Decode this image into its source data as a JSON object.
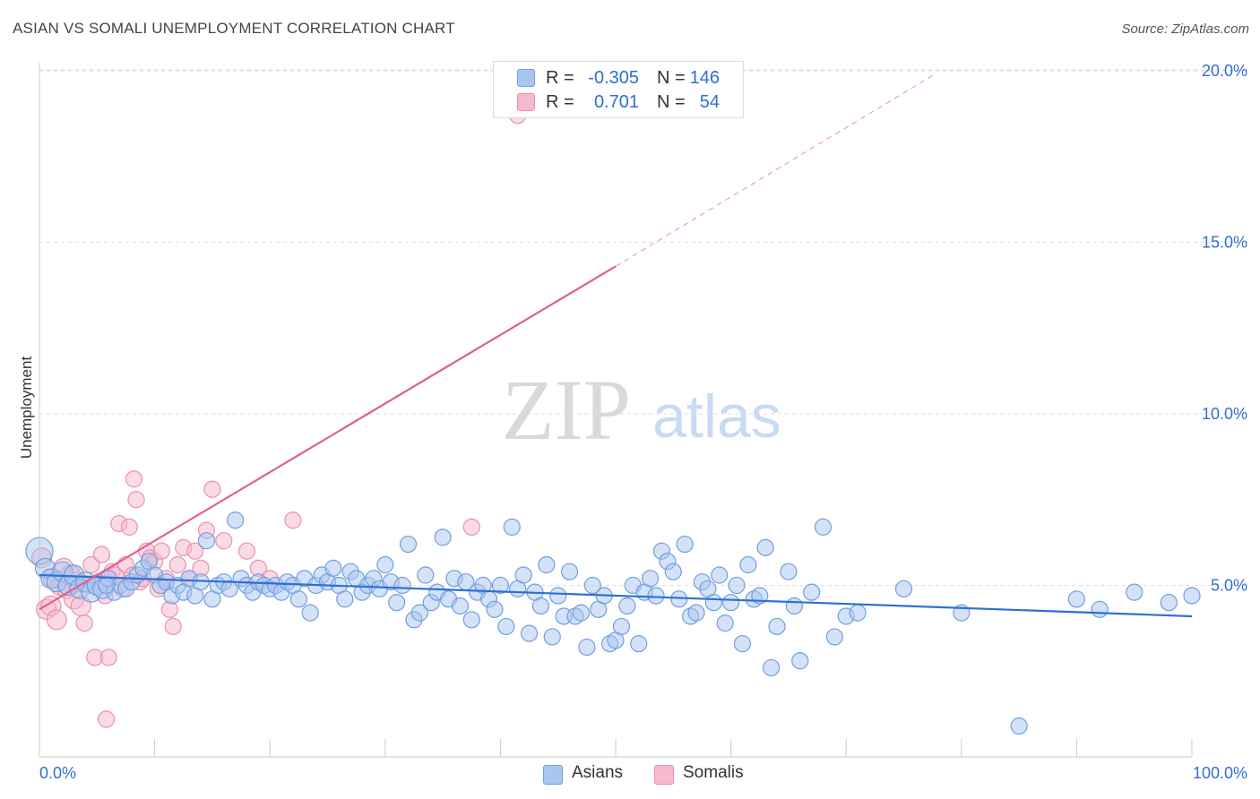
{
  "title": "ASIAN VS SOMALI UNEMPLOYMENT CORRELATION CHART",
  "source": "Source: ZipAtlas.com",
  "watermark": {
    "zip": "ZIP",
    "atlas": "atlas"
  },
  "legend": {
    "rows": [
      {
        "r_label": "R =",
        "r_value": "-0.305",
        "n_label": "N =",
        "n_value": "146"
      },
      {
        "r_label": "R =",
        "r_value": "0.701",
        "n_label": "N =",
        "n_value": "54"
      }
    ]
  },
  "colors": {
    "asians_fill": "#a9c6f0",
    "asians_stroke": "#6f9fe0",
    "asians_line": "#2f6fd6",
    "somalis_fill": "#f6b8cb",
    "somalis_stroke": "#ec8fac",
    "somalis_line": "#e0608e",
    "axis_text": "#2f6fd6",
    "grid": "#dddddd"
  },
  "chart_data": {
    "type": "scatter",
    "title": "ASIAN VS SOMALI UNEMPLOYMENT CORRELATION CHART",
    "xlabel": "",
    "ylabel": "Unemployment",
    "xlim": [
      0,
      100
    ],
    "ylim": [
      0,
      20.5
    ],
    "x_tick_labels": [
      "0.0%",
      "100.0%"
    ],
    "y_ticks": [
      5,
      10,
      15,
      20
    ],
    "y_tick_labels": [
      "5.0%",
      "10.0%",
      "15.0%",
      "20.0%"
    ],
    "grid": true,
    "legend_position": "bottom",
    "series": [
      {
        "name": "Asians",
        "stats": {
          "R": -0.305,
          "N": 146
        },
        "trend": {
          "x": [
            0,
            100
          ],
          "y": [
            5.3,
            4.1
          ],
          "extrapolated": false
        },
        "points": [
          [
            0,
            6.0
          ],
          [
            0.5,
            5.5
          ],
          [
            1,
            5.2
          ],
          [
            1.5,
            5.1
          ],
          [
            2,
            5.4
          ],
          [
            2.5,
            5.0
          ],
          [
            3,
            5.3
          ],
          [
            3.5,
            4.9
          ],
          [
            4,
            5.1
          ],
          [
            4.5,
            4.8
          ],
          [
            5,
            5.0
          ],
          [
            5.5,
            4.9
          ],
          [
            6,
            5.2
          ],
          [
            6.5,
            4.8
          ],
          [
            7,
            5.0
          ],
          [
            7.5,
            4.9
          ],
          [
            8,
            5.1
          ],
          [
            8.5,
            5.3
          ],
          [
            9,
            5.5
          ],
          [
            9.5,
            5.7
          ],
          [
            10,
            5.3
          ],
          [
            10.5,
            5.0
          ],
          [
            11,
            5.1
          ],
          [
            11.5,
            4.7
          ],
          [
            12,
            5.0
          ],
          [
            12.5,
            4.8
          ],
          [
            13,
            5.2
          ],
          [
            13.5,
            4.7
          ],
          [
            14,
            5.1
          ],
          [
            14.5,
            6.3
          ],
          [
            15,
            4.6
          ],
          [
            15.5,
            5.0
          ],
          [
            16,
            5.1
          ],
          [
            16.5,
            4.9
          ],
          [
            17,
            6.9
          ],
          [
            17.5,
            5.2
          ],
          [
            18,
            5.0
          ],
          [
            18.5,
            4.8
          ],
          [
            19,
            5.1
          ],
          [
            19.5,
            5.0
          ],
          [
            20,
            4.9
          ],
          [
            20.5,
            5.0
          ],
          [
            21,
            4.8
          ],
          [
            21.5,
            5.1
          ],
          [
            22,
            5.0
          ],
          [
            22.5,
            4.6
          ],
          [
            23,
            5.2
          ],
          [
            23.5,
            4.2
          ],
          [
            24,
            5.0
          ],
          [
            24.5,
            5.3
          ],
          [
            25,
            5.1
          ],
          [
            25.5,
            5.5
          ],
          [
            26,
            5.0
          ],
          [
            26.5,
            4.6
          ],
          [
            27,
            5.4
          ],
          [
            27.5,
            5.2
          ],
          [
            28,
            4.8
          ],
          [
            28.5,
            5.0
          ],
          [
            29,
            5.2
          ],
          [
            29.5,
            4.9
          ],
          [
            30,
            5.6
          ],
          [
            30.5,
            5.1
          ],
          [
            31,
            4.5
          ],
          [
            31.5,
            5.0
          ],
          [
            32,
            6.2
          ],
          [
            32.5,
            4.0
          ],
          [
            33,
            4.2
          ],
          [
            33.5,
            5.3
          ],
          [
            34,
            4.5
          ],
          [
            34.5,
            4.8
          ],
          [
            35,
            6.4
          ],
          [
            35.5,
            4.6
          ],
          [
            36,
            5.2
          ],
          [
            36.5,
            4.4
          ],
          [
            37,
            5.1
          ],
          [
            37.5,
            4.0
          ],
          [
            38,
            4.8
          ],
          [
            38.5,
            5.0
          ],
          [
            39,
            4.6
          ],
          [
            39.5,
            4.3
          ],
          [
            40,
            5.0
          ],
          [
            40.5,
            3.8
          ],
          [
            41,
            6.7
          ],
          [
            41.5,
            4.9
          ],
          [
            42,
            5.3
          ],
          [
            42.5,
            3.6
          ],
          [
            43,
            4.8
          ],
          [
            43.5,
            4.4
          ],
          [
            44,
            5.6
          ],
          [
            44.5,
            3.5
          ],
          [
            45,
            4.7
          ],
          [
            45.5,
            4.1
          ],
          [
            46,
            5.4
          ],
          [
            46.5,
            4.1
          ],
          [
            47,
            4.2
          ],
          [
            47.5,
            3.2
          ],
          [
            48,
            5.0
          ],
          [
            48.5,
            4.3
          ],
          [
            49,
            4.7
          ],
          [
            49.5,
            3.3
          ],
          [
            50,
            3.4
          ],
          [
            50.5,
            3.8
          ],
          [
            51,
            4.4
          ],
          [
            51.5,
            5.0
          ],
          [
            52,
            3.3
          ],
          [
            52.5,
            4.8
          ],
          [
            53,
            5.2
          ],
          [
            53.5,
            4.7
          ],
          [
            54,
            6.0
          ],
          [
            54.5,
            5.7
          ],
          [
            55,
            5.4
          ],
          [
            55.5,
            4.6
          ],
          [
            56,
            6.2
          ],
          [
            56.5,
            4.1
          ],
          [
            57,
            4.2
          ],
          [
            57.5,
            5.1
          ],
          [
            58,
            4.9
          ],
          [
            58.5,
            4.5
          ],
          [
            59,
            5.3
          ],
          [
            59.5,
            3.9
          ],
          [
            60,
            4.5
          ],
          [
            60.5,
            5.0
          ],
          [
            61,
            3.3
          ],
          [
            61.5,
            5.6
          ],
          [
            62,
            4.6
          ],
          [
            62.5,
            4.7
          ],
          [
            63,
            6.1
          ],
          [
            63.5,
            2.6
          ],
          [
            64,
            3.8
          ],
          [
            65,
            5.4
          ],
          [
            65.5,
            4.4
          ],
          [
            66,
            2.8
          ],
          [
            67,
            4.8
          ],
          [
            68,
            6.7
          ],
          [
            69,
            3.5
          ],
          [
            70,
            4.1
          ],
          [
            71,
            4.2
          ],
          [
            75,
            4.9
          ],
          [
            80,
            4.2
          ],
          [
            85,
            0.9
          ],
          [
            90,
            4.6
          ],
          [
            92,
            4.3
          ],
          [
            95,
            4.8
          ],
          [
            98,
            4.5
          ],
          [
            100,
            4.7
          ],
          [
            5.8,
            5.0
          ]
        ]
      },
      {
        "name": "Somalis",
        "stats": {
          "R": 0.701,
          "N": 54
        },
        "trend": {
          "x": [
            0,
            50
          ],
          "y": [
            4.3,
            14.3
          ],
          "extrapolated_to": [
            77.7,
            19.9
          ]
        },
        "points": [
          [
            0.2,
            5.8
          ],
          [
            0.6,
            4.3
          ],
          [
            1,
            4.4
          ],
          [
            1.2,
            5.2
          ],
          [
            1.5,
            4.0
          ],
          [
            1.8,
            5.0
          ],
          [
            2.1,
            5.5
          ],
          [
            2.4,
            4.9
          ],
          [
            2.7,
            5.3
          ],
          [
            3,
            4.6
          ],
          [
            3.3,
            5.1
          ],
          [
            3.6,
            4.4
          ],
          [
            3.9,
            3.9
          ],
          [
            4.2,
            5.0
          ],
          [
            4.5,
            5.6
          ],
          [
            4.8,
            2.9
          ],
          [
            5.1,
            5.1
          ],
          [
            5.4,
            5.9
          ],
          [
            5.7,
            4.7
          ],
          [
            6,
            2.9
          ],
          [
            6.3,
            5.4
          ],
          [
            6.6,
            5.3
          ],
          [
            6.9,
            6.8
          ],
          [
            7.2,
            4.9
          ],
          [
            7.5,
            5.6
          ],
          [
            7.8,
            6.7
          ],
          [
            8.1,
            5.3
          ],
          [
            8.4,
            7.5
          ],
          [
            8.7,
            5.1
          ],
          [
            9,
            5.2
          ],
          [
            9.3,
            6.0
          ],
          [
            9.6,
            5.8
          ],
          [
            10,
            5.7
          ],
          [
            10.3,
            4.9
          ],
          [
            10.6,
            6.0
          ],
          [
            11,
            5.2
          ],
          [
            11.3,
            4.3
          ],
          [
            11.6,
            3.8
          ],
          [
            12,
            5.6
          ],
          [
            12.5,
            6.1
          ],
          [
            13,
            5.2
          ],
          [
            13.5,
            6.0
          ],
          [
            14,
            5.5
          ],
          [
            14.5,
            6.6
          ],
          [
            15,
            7.8
          ],
          [
            16,
            6.3
          ],
          [
            18,
            6.0
          ],
          [
            19,
            5.5
          ],
          [
            20,
            5.2
          ],
          [
            22,
            6.9
          ],
          [
            8.2,
            8.1
          ],
          [
            5.8,
            1.1
          ],
          [
            37.5,
            6.7
          ],
          [
            41.5,
            18.7
          ]
        ]
      }
    ]
  }
}
